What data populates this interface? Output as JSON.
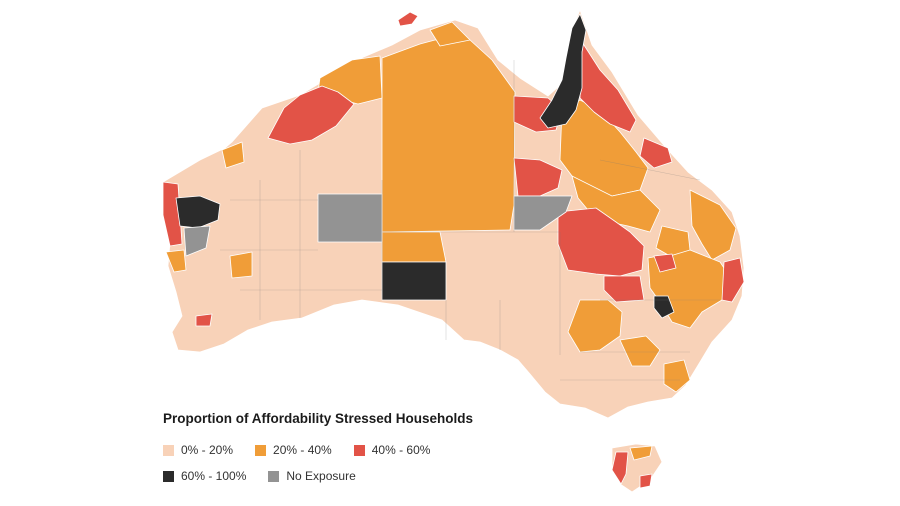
{
  "legend": {
    "title": "Proportion of Affordability Stressed Households",
    "items": [
      {
        "key": "c0",
        "label": "0% - 20%",
        "color": "#f8d2b8"
      },
      {
        "key": "c1",
        "label": "20% - 40%",
        "color": "#f09d38"
      },
      {
        "key": "c2",
        "label": "40% - 60%",
        "color": "#e25347"
      },
      {
        "key": "c3",
        "label": "60% - 100%",
        "color": "#2b2b2b"
      },
      {
        "key": "c4",
        "label": "No Exposure",
        "color": "#939393"
      }
    ]
  },
  "colors": {
    "land_outline": "#ffffff",
    "boundary_lines": "#8c8c8c",
    "background": "#ffffff"
  }
}
